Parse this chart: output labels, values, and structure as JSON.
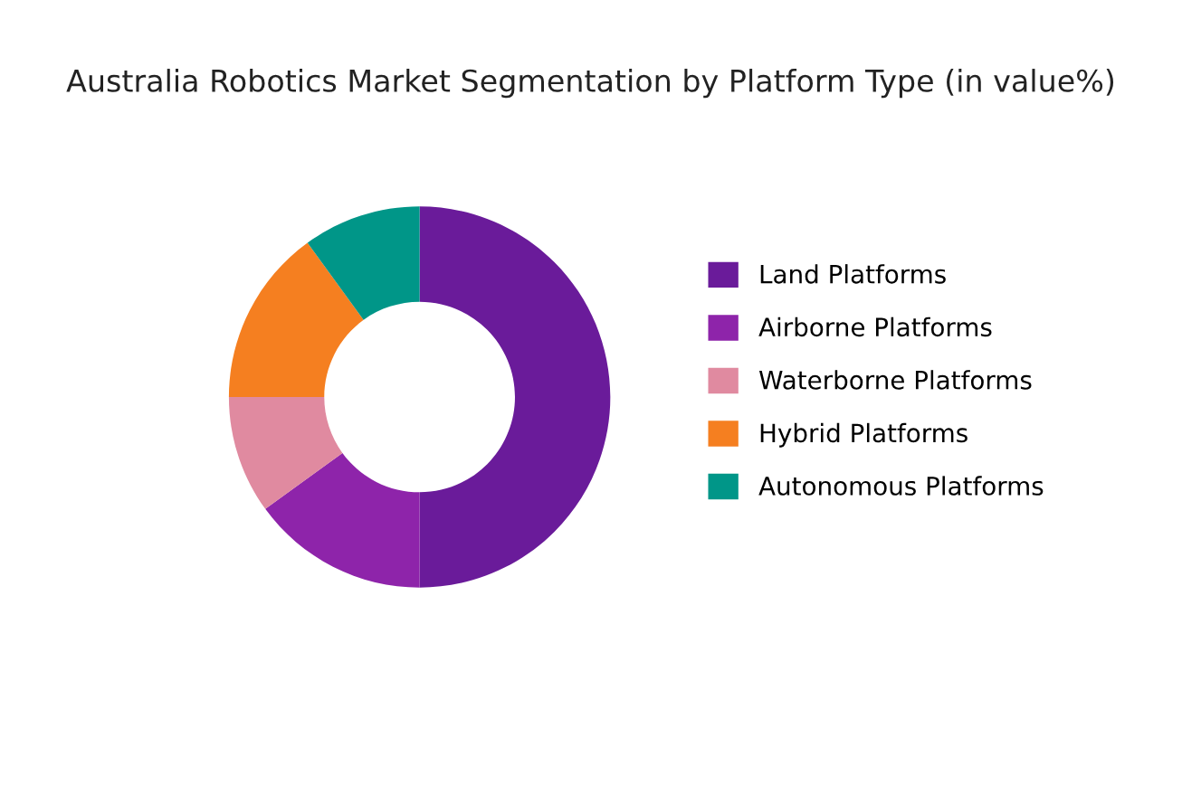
{
  "chart_data": {
    "type": "donut",
    "title": "Australia Robotics Market Segmentation by Platform Type (in value%)",
    "categories": [
      "Land Platforms",
      "Airborne Platforms",
      "Waterborne Platforms",
      "Hybrid Platforms",
      "Autonomous Platforms"
    ],
    "values": [
      50,
      15,
      10,
      15,
      10
    ],
    "colors": [
      "#6a1b9a",
      "#8e24aa",
      "#e08aa0",
      "#f57f20",
      "#009688"
    ],
    "legend": "right"
  }
}
